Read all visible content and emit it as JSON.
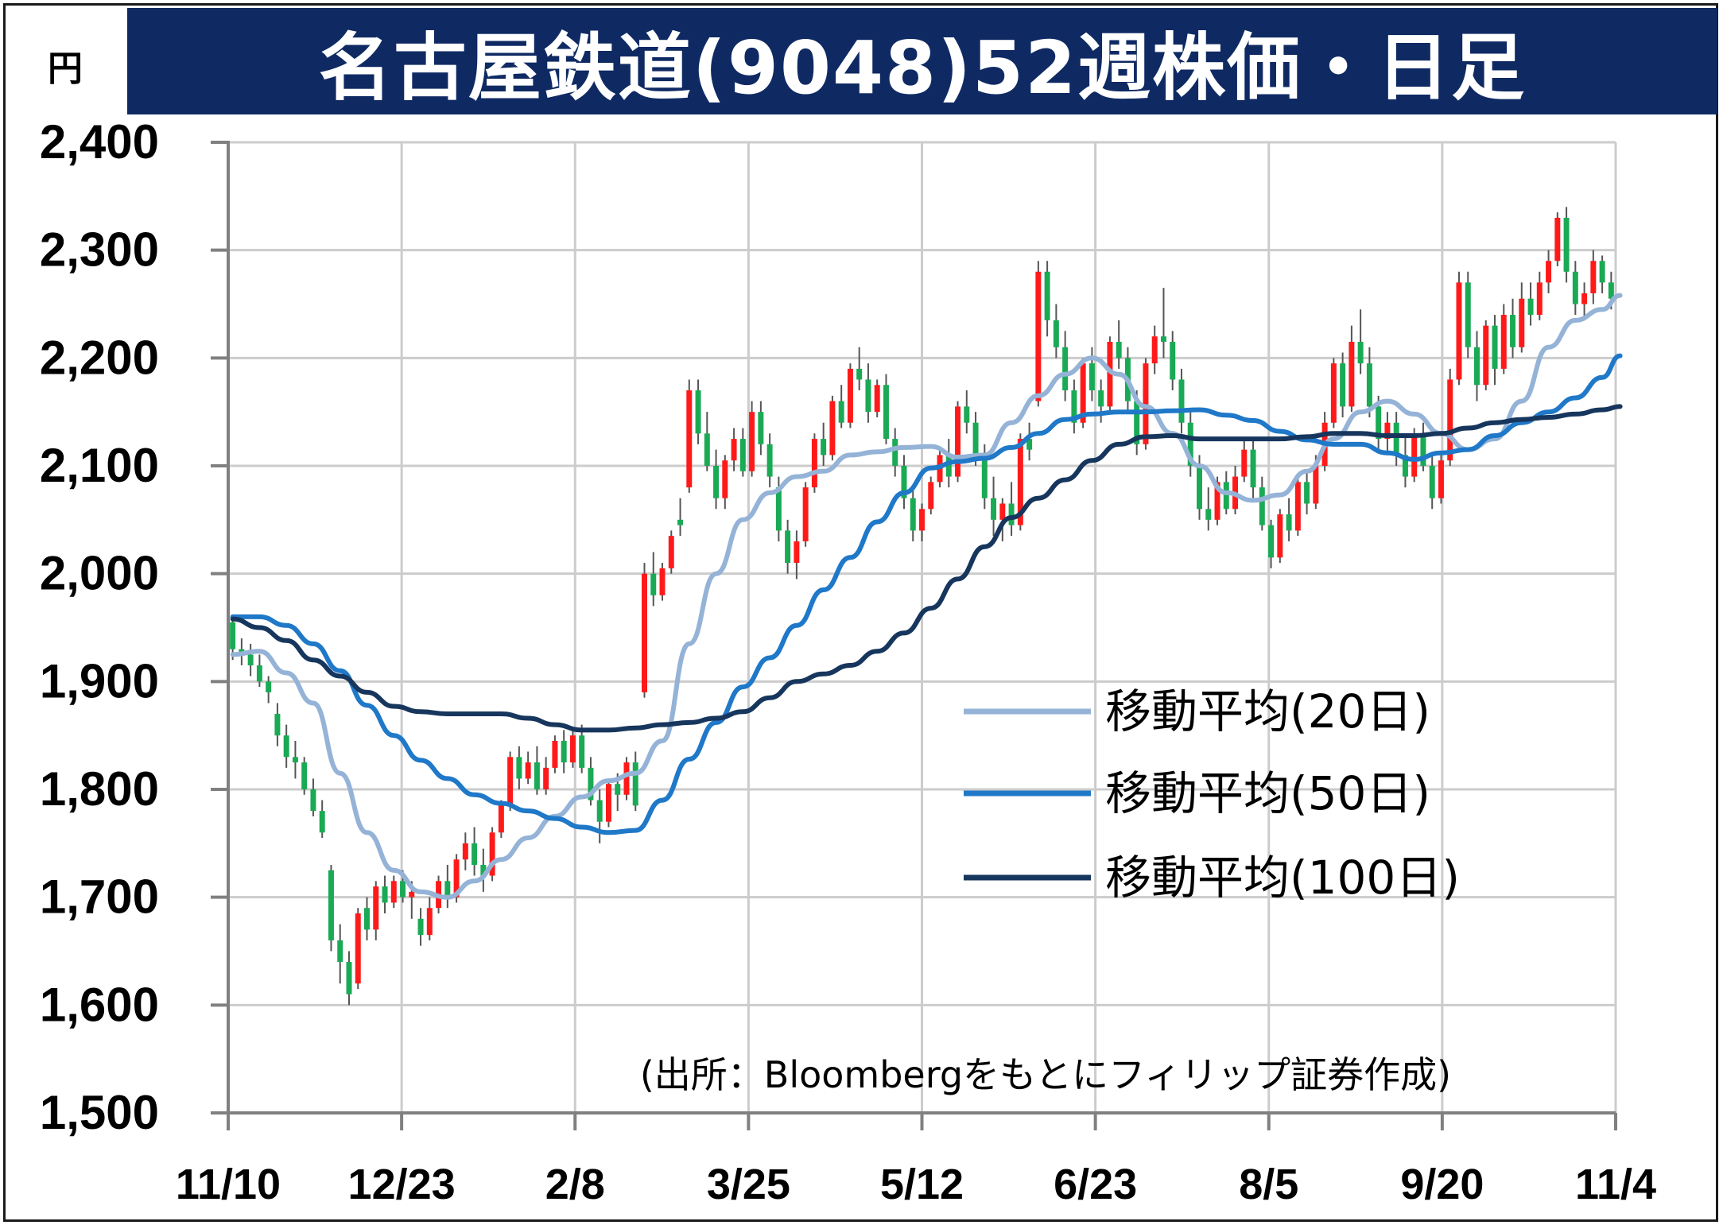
{
  "title": "名古屋鉄道(9048)52週株価・日足",
  "unit_label": "円",
  "source": "(出所：Bloombergをもとにフィリップ証券作成)",
  "colors": {
    "up": "#ff1a1a",
    "down": "#1aaa55",
    "ma20": "#95b3d7",
    "ma50": "#1f78c8",
    "ma100": "#17365d",
    "grid": "#cccccc",
    "title_bg": "#0f2a63"
  },
  "chart_data": {
    "type": "candlestick",
    "title": "名古屋鉄道(9048)52週株価・日足",
    "ylabel": "円",
    "ylim": [
      1500,
      2400
    ],
    "yticks": [
      1500,
      1600,
      1700,
      1800,
      1900,
      2000,
      2100,
      2200,
      2300,
      2400
    ],
    "ytick_labels": [
      "1,500",
      "1,600",
      "1,700",
      "1,800",
      "1,900",
      "2,000",
      "2,100",
      "2,200",
      "2,300",
      "2,400"
    ],
    "xtick_labels": [
      "11/10",
      "12/23",
      "2/8",
      "3/25",
      "5/12",
      "6/23",
      "8/5",
      "9/20",
      "11/4"
    ],
    "grid": true,
    "legend_position": "center-right",
    "candles": [
      [
        1955,
        1960,
        1920,
        1930
      ],
      [
        1930,
        1940,
        1915,
        1925
      ],
      [
        1925,
        1935,
        1905,
        1915
      ],
      [
        1915,
        1925,
        1895,
        1900
      ],
      [
        1900,
        1905,
        1880,
        1890
      ],
      [
        1870,
        1880,
        1840,
        1850
      ],
      [
        1850,
        1860,
        1820,
        1830
      ],
      [
        1830,
        1845,
        1810,
        1825
      ],
      [
        1825,
        1830,
        1795,
        1800
      ],
      [
        1800,
        1810,
        1775,
        1780
      ],
      [
        1780,
        1790,
        1755,
        1760
      ],
      [
        1725,
        1730,
        1650,
        1660
      ],
      [
        1660,
        1675,
        1620,
        1640
      ],
      [
        1640,
        1650,
        1600,
        1610
      ],
      [
        1620,
        1690,
        1615,
        1685
      ],
      [
        1690,
        1700,
        1660,
        1670
      ],
      [
        1670,
        1715,
        1660,
        1710
      ],
      [
        1710,
        1720,
        1685,
        1695
      ],
      [
        1695,
        1720,
        1690,
        1715
      ],
      [
        1715,
        1725,
        1695,
        1700
      ],
      [
        1700,
        1715,
        1680,
        1705
      ],
      [
        1680,
        1690,
        1655,
        1665
      ],
      [
        1665,
        1700,
        1660,
        1690
      ],
      [
        1690,
        1720,
        1685,
        1715
      ],
      [
        1715,
        1730,
        1690,
        1700
      ],
      [
        1700,
        1740,
        1695,
        1735
      ],
      [
        1735,
        1760,
        1725,
        1750
      ],
      [
        1750,
        1765,
        1720,
        1730
      ],
      [
        1730,
        1745,
        1705,
        1720
      ],
      [
        1720,
        1765,
        1715,
        1760
      ],
      [
        1760,
        1790,
        1755,
        1785
      ],
      [
        1785,
        1835,
        1780,
        1830
      ],
      [
        1830,
        1840,
        1800,
        1810
      ],
      [
        1810,
        1835,
        1805,
        1825
      ],
      [
        1825,
        1840,
        1795,
        1800
      ],
      [
        1800,
        1830,
        1795,
        1820
      ],
      [
        1820,
        1850,
        1815,
        1845
      ],
      [
        1845,
        1855,
        1815,
        1825
      ],
      [
        1825,
        1855,
        1820,
        1850
      ],
      [
        1850,
        1860,
        1815,
        1820
      ],
      [
        1820,
        1830,
        1785,
        1790
      ],
      [
        1790,
        1800,
        1750,
        1770
      ],
      [
        1770,
        1810,
        1765,
        1805
      ],
      [
        1805,
        1815,
        1780,
        1795
      ],
      [
        1795,
        1830,
        1790,
        1825
      ],
      [
        1825,
        1835,
        1780,
        1785
      ],
      [
        1890,
        2010,
        1885,
        2000
      ],
      [
        2000,
        2020,
        1970,
        1980
      ],
      [
        1980,
        2010,
        1975,
        2005
      ],
      [
        2005,
        2040,
        2000,
        2035
      ],
      [
        2050,
        2070,
        2035,
        2045
      ],
      [
        2080,
        2180,
        2075,
        2170
      ],
      [
        2170,
        2180,
        2120,
        2130
      ],
      [
        2130,
        2150,
        2095,
        2100
      ],
      [
        2100,
        2115,
        2060,
        2070
      ],
      [
        2070,
        2110,
        2060,
        2105
      ],
      [
        2105,
        2135,
        2095,
        2125
      ],
      [
        2125,
        2135,
        2090,
        2095
      ],
      [
        2095,
        2160,
        2090,
        2150
      ],
      [
        2150,
        2160,
        2110,
        2120
      ],
      [
        2120,
        2130,
        2080,
        2090
      ],
      [
        2080,
        2090,
        2030,
        2040
      ],
      [
        2040,
        2050,
        2000,
        2010
      ],
      [
        2010,
        2040,
        1995,
        2030
      ],
      [
        2030,
        2085,
        2025,
        2080
      ],
      [
        2080,
        2130,
        2075,
        2125
      ],
      [
        2125,
        2140,
        2100,
        2110
      ],
      [
        2110,
        2165,
        2105,
        2160
      ],
      [
        2160,
        2175,
        2135,
        2140
      ],
      [
        2140,
        2195,
        2135,
        2190
      ],
      [
        2190,
        2210,
        2170,
        2180
      ],
      [
        2180,
        2195,
        2140,
        2150
      ],
      [
        2150,
        2180,
        2145,
        2175
      ],
      [
        2175,
        2185,
        2120,
        2125
      ],
      [
        2125,
        2135,
        2090,
        2100
      ],
      [
        2100,
        2110,
        2060,
        2070
      ],
      [
        2070,
        2080,
        2030,
        2040
      ],
      [
        2040,
        2065,
        2030,
        2060
      ],
      [
        2060,
        2090,
        2055,
        2085
      ],
      [
        2085,
        2115,
        2080,
        2110
      ],
      [
        2110,
        2125,
        2080,
        2090
      ],
      [
        2090,
        2160,
        2085,
        2155
      ],
      [
        2155,
        2170,
        2130,
        2140
      ],
      [
        2140,
        2150,
        2100,
        2110
      ],
      [
        2110,
        2120,
        2060,
        2070
      ],
      [
        2070,
        2090,
        2035,
        2050
      ],
      [
        2050,
        2070,
        2030,
        2065
      ],
      [
        2065,
        2085,
        2035,
        2045
      ],
      [
        2045,
        2130,
        2040,
        2125
      ],
      [
        2125,
        2140,
        2105,
        2115
      ],
      [
        2160,
        2290,
        2155,
        2280
      ],
      [
        2280,
        2290,
        2220,
        2235
      ],
      [
        2235,
        2250,
        2200,
        2210
      ],
      [
        2210,
        2225,
        2160,
        2170
      ],
      [
        2170,
        2180,
        2130,
        2140
      ],
      [
        2140,
        2200,
        2135,
        2195
      ],
      [
        2195,
        2210,
        2160,
        2170
      ],
      [
        2170,
        2180,
        2140,
        2155
      ],
      [
        2155,
        2220,
        2150,
        2215
      ],
      [
        2215,
        2235,
        2190,
        2200
      ],
      [
        2200,
        2210,
        2150,
        2160
      ],
      [
        2160,
        2170,
        2110,
        2120
      ],
      [
        2120,
        2200,
        2115,
        2195
      ],
      [
        2195,
        2230,
        2185,
        2220
      ],
      [
        2220,
        2265,
        2200,
        2215
      ],
      [
        2215,
        2225,
        2170,
        2180
      ],
      [
        2180,
        2190,
        2130,
        2140
      ],
      [
        2140,
        2150,
        2090,
        2100
      ],
      [
        2100,
        2110,
        2050,
        2060
      ],
      [
        2060,
        2080,
        2040,
        2050
      ],
      [
        2050,
        2090,
        2045,
        2085
      ],
      [
        2085,
        2095,
        2055,
        2060
      ],
      [
        2060,
        2100,
        2055,
        2090
      ],
      [
        2090,
        2125,
        2085,
        2115
      ],
      [
        2115,
        2125,
        2070,
        2080
      ],
      [
        2080,
        2090,
        2040,
        2045
      ],
      [
        2045,
        2050,
        2005,
        2015
      ],
      [
        2015,
        2060,
        2010,
        2055
      ],
      [
        2055,
        2070,
        2030,
        2040
      ],
      [
        2040,
        2090,
        2035,
        2085
      ],
      [
        2085,
        2095,
        2055,
        2065
      ],
      [
        2065,
        2110,
        2060,
        2100
      ],
      [
        2100,
        2150,
        2095,
        2140
      ],
      [
        2140,
        2200,
        2135,
        2195
      ],
      [
        2195,
        2205,
        2145,
        2155
      ],
      [
        2155,
        2230,
        2150,
        2215
      ],
      [
        2215,
        2245,
        2185,
        2195
      ],
      [
        2195,
        2210,
        2145,
        2155
      ],
      [
        2155,
        2165,
        2115,
        2125
      ],
      [
        2125,
        2150,
        2110,
        2140
      ],
      [
        2140,
        2150,
        2100,
        2110
      ],
      [
        2110,
        2130,
        2080,
        2090
      ],
      [
        2090,
        2135,
        2085,
        2130
      ],
      [
        2130,
        2140,
        2095,
        2100
      ],
      [
        2100,
        2110,
        2060,
        2070
      ],
      [
        2070,
        2110,
        2065,
        2105
      ],
      [
        2105,
        2190,
        2100,
        2180
      ],
      [
        2180,
        2280,
        2175,
        2270
      ],
      [
        2270,
        2280,
        2200,
        2210
      ],
      [
        2210,
        2225,
        2160,
        2175
      ],
      [
        2175,
        2235,
        2170,
        2230
      ],
      [
        2230,
        2240,
        2175,
        2190
      ],
      [
        2190,
        2250,
        2185,
        2240
      ],
      [
        2240,
        2255,
        2200,
        2210
      ],
      [
        2210,
        2270,
        2205,
        2255
      ],
      [
        2255,
        2270,
        2230,
        2240
      ],
      [
        2240,
        2280,
        2235,
        2270
      ],
      [
        2270,
        2300,
        2260,
        2290
      ],
      [
        2290,
        2335,
        2285,
        2330
      ],
      [
        2330,
        2340,
        2270,
        2280
      ],
      [
        2280,
        2290,
        2240,
        2250
      ],
      [
        2250,
        2270,
        2235,
        2260
      ],
      [
        2260,
        2300,
        2250,
        2290
      ],
      [
        2290,
        2295,
        2260,
        2270
      ],
      [
        2270,
        2280,
        2245,
        2255
      ]
    ],
    "series": [
      {
        "name": "移動平均(20日)",
        "x": [
          0,
          3,
          6,
          9,
          12,
          15,
          18,
          21,
          24,
          27,
          30,
          33,
          36,
          39,
          42,
          45,
          48,
          51,
          54,
          57,
          60,
          63,
          66,
          69,
          72,
          75,
          78,
          81,
          84,
          87,
          90,
          93,
          96,
          99,
          102,
          105,
          108,
          111,
          114,
          117,
          120,
          123,
          126,
          129,
          132,
          135,
          138,
          141,
          144,
          147,
          150,
          153,
          155
        ],
        "y": [
          1925,
          1928,
          1908,
          1880,
          1815,
          1760,
          1725,
          1705,
          1700,
          1715,
          1735,
          1755,
          1775,
          1793,
          1808,
          1815,
          1845,
          1935,
          2000,
          2050,
          2075,
          2090,
          2095,
          2110,
          2113,
          2117,
          2118,
          2108,
          2110,
          2140,
          2165,
          2185,
          2200,
          2185,
          2155,
          2130,
          2100,
          2075,
          2068,
          2073,
          2095,
          2125,
          2150,
          2160,
          2148,
          2130,
          2115,
          2125,
          2160,
          2210,
          2235,
          2245,
          2258
        ]
      },
      {
        "name": "移動平均(50日)",
        "x": [
          0,
          3,
          6,
          9,
          12,
          15,
          18,
          21,
          24,
          27,
          30,
          33,
          36,
          39,
          42,
          45,
          48,
          51,
          54,
          57,
          60,
          63,
          66,
          69,
          72,
          75,
          78,
          81,
          84,
          87,
          90,
          93,
          96,
          99,
          102,
          105,
          108,
          111,
          114,
          117,
          120,
          123,
          126,
          129,
          132,
          135,
          138,
          141,
          144,
          147,
          150,
          153,
          155
        ],
        "y": [
          1960,
          1960,
          1952,
          1935,
          1910,
          1878,
          1850,
          1827,
          1810,
          1795,
          1787,
          1780,
          1773,
          1765,
          1760,
          1762,
          1790,
          1828,
          1862,
          1895,
          1922,
          1952,
          1985,
          2015,
          2048,
          2075,
          2098,
          2104,
          2107,
          2117,
          2130,
          2143,
          2148,
          2150,
          2150,
          2151,
          2152,
          2147,
          2142,
          2132,
          2124,
          2120,
          2120,
          2112,
          2106,
          2112,
          2115,
          2128,
          2140,
          2150,
          2163,
          2182,
          2202
        ]
      },
      {
        "name": "移動平均(100日)",
        "x": [
          0,
          3,
          6,
          9,
          12,
          15,
          18,
          21,
          24,
          27,
          30,
          33,
          36,
          39,
          42,
          45,
          48,
          51,
          54,
          57,
          60,
          63,
          66,
          69,
          72,
          75,
          78,
          81,
          84,
          87,
          90,
          93,
          96,
          99,
          102,
          105,
          108,
          111,
          114,
          117,
          120,
          123,
          126,
          129,
          132,
          135,
          138,
          141,
          144,
          147,
          150,
          153,
          155
        ],
        "y": [
          1958,
          1950,
          1938,
          1920,
          1905,
          1890,
          1877,
          1872,
          1870,
          1870,
          1870,
          1866,
          1860,
          1855,
          1855,
          1857,
          1860,
          1862,
          1866,
          1872,
          1885,
          1900,
          1907,
          1915,
          1928,
          1945,
          1968,
          1995,
          2025,
          2052,
          2070,
          2087,
          2105,
          2120,
          2127,
          2128,
          2125,
          2125,
          2125,
          2125,
          2127,
          2130,
          2130,
          2128,
          2128,
          2130,
          2135,
          2140,
          2143,
          2145,
          2148,
          2152,
          2155
        ]
      }
    ],
    "legend": [
      "移動平均(20日)",
      "移動平均(50日)",
      "移動平均(100日)"
    ]
  }
}
